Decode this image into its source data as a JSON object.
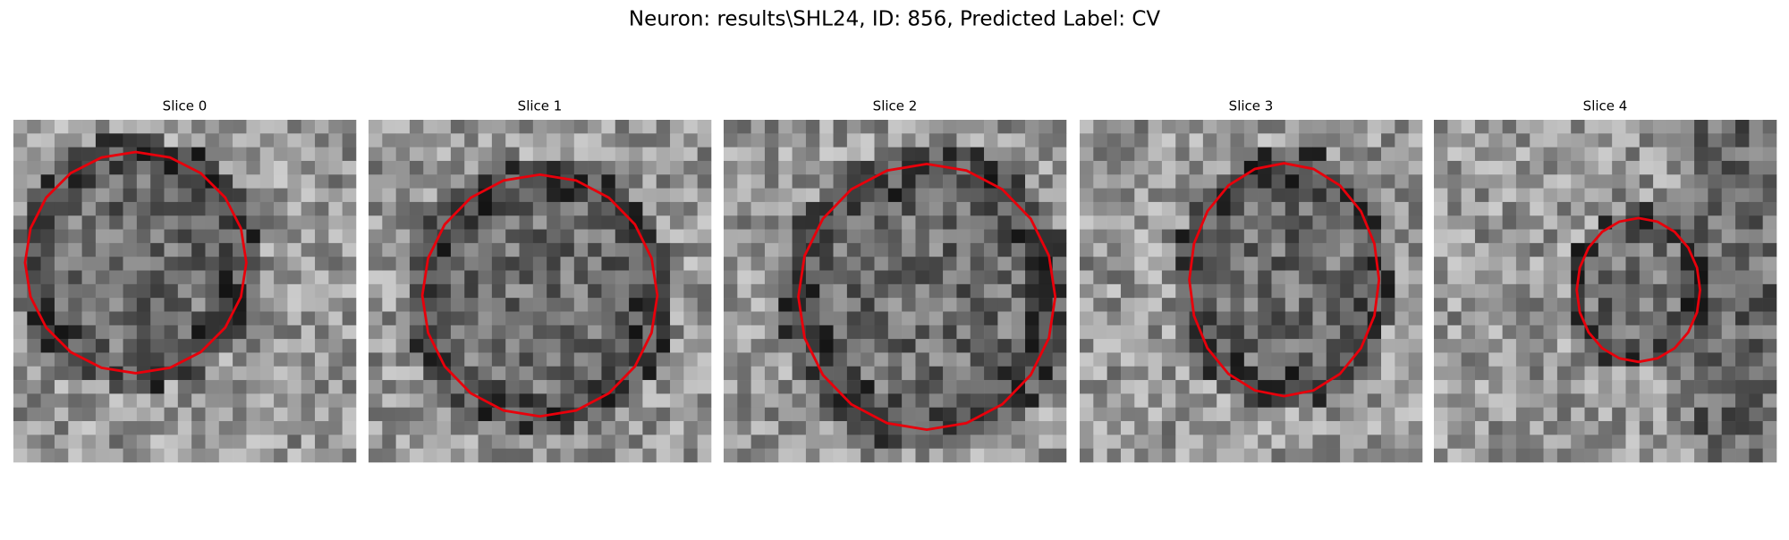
{
  "title": "Neuron: results\\SHL24, ID: 856, Predicted Label: CV",
  "panels": [
    {
      "title": "Slice 0"
    },
    {
      "title": "Slice 1"
    },
    {
      "title": "Slice 2"
    },
    {
      "title": "Slice 3"
    },
    {
      "title": "Slice 4"
    }
  ]
}
